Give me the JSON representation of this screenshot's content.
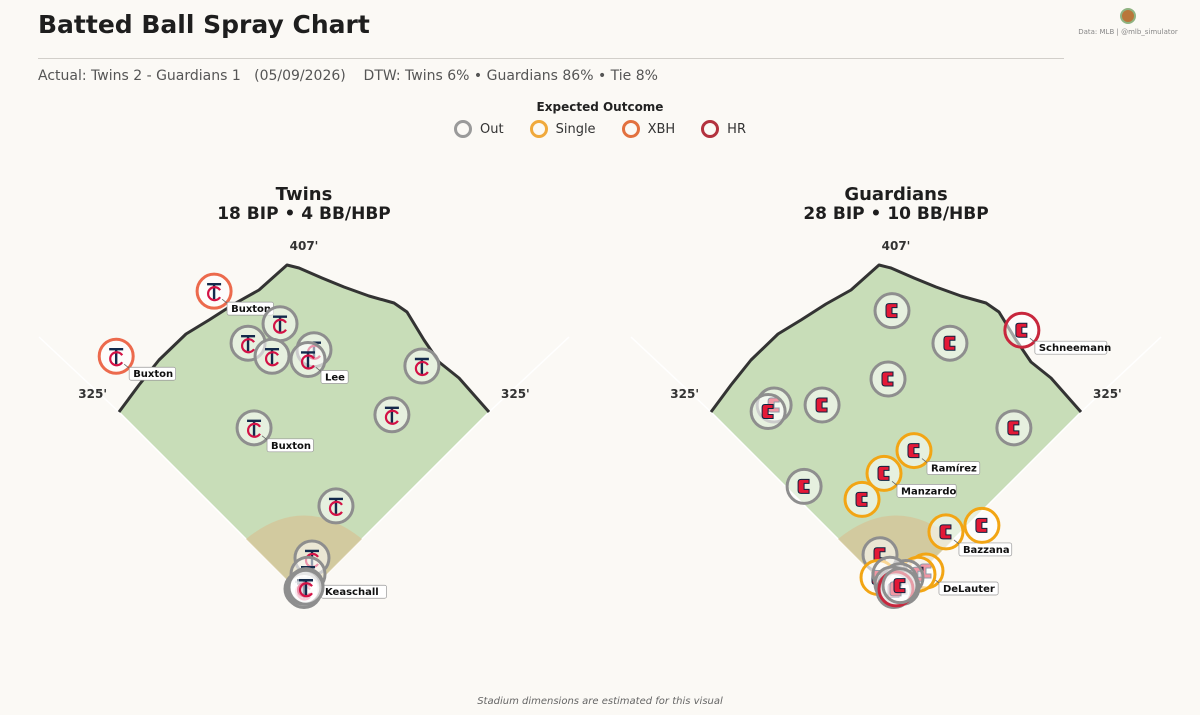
{
  "title": "Batted Ball Spray Chart",
  "subtitle": "Actual: Twins 2 - Guardians 1   (05/09/2026)    DTW: Twins 6% • Guardians 86% • Tie 8%",
  "credits": "Data: MLB  |  @mlb_simulator",
  "legend": {
    "title": "Expected Outcome",
    "items": [
      {
        "label": "Out",
        "color": "#9a9a9a"
      },
      {
        "label": "Single",
        "color": "#f0a93c"
      },
      {
        "label": "XBH",
        "color": "#e2713f"
      },
      {
        "label": "HR",
        "color": "#b3323e"
      }
    ]
  },
  "footnote": "Stadium dimensions are estimated for this visual",
  "colors": {
    "Out": "#8e8e8e",
    "Single": "#f2a514",
    "XBH": "#ec6a4d",
    "HR": "#c8273d",
    "grass": "#c8ddb8",
    "dirt": "#d4c699",
    "wall": "#333333"
  },
  "chart_data": [
    {
      "type": "scatter",
      "team": "Twins",
      "title": "Twins",
      "summary": "18 BIP  •  4 BB/HBP",
      "logo": "twins-tc-logo",
      "dims": {
        "center": "407'",
        "left": "325'",
        "right": "325'"
      },
      "points": [
        {
          "x": -0.94,
          "y": 0.74,
          "outcome": "XBH",
          "label": "Buxton"
        },
        {
          "x": -0.45,
          "y": 0.94,
          "outcome": "XBH",
          "label": "Buxton"
        },
        {
          "x": -0.12,
          "y": 0.84,
          "outcome": "Out"
        },
        {
          "x": -0.28,
          "y": 0.78,
          "outcome": "Out"
        },
        {
          "x": -0.16,
          "y": 0.74,
          "outcome": "Out"
        },
        {
          "x": 0.05,
          "y": 0.76,
          "outcome": "Out"
        },
        {
          "x": 0.02,
          "y": 0.73,
          "outcome": "Out",
          "label": "Lee"
        },
        {
          "x": 0.59,
          "y": 0.71,
          "outcome": "Out"
        },
        {
          "x": -0.25,
          "y": 0.52,
          "outcome": "Out",
          "label": "Buxton"
        },
        {
          "x": 0.44,
          "y": 0.56,
          "outcome": "Out"
        },
        {
          "x": 0.16,
          "y": 0.28,
          "outcome": "Out"
        },
        {
          "x": 0.04,
          "y": 0.12,
          "outcome": "Out"
        },
        {
          "x": 0.02,
          "y": 0.07,
          "outcome": "Out",
          "label": "Keaschall"
        },
        {
          "x": 0.01,
          "y": 0.035,
          "outcome": "Out"
        },
        {
          "x": -0.01,
          "y": 0.025,
          "outcome": "Out"
        },
        {
          "x": 0.0,
          "y": 0.02,
          "outcome": "Out"
        },
        {
          "x": 0.0,
          "y": 0.03,
          "outcome": "Out"
        },
        {
          "x": 0.01,
          "y": 0.03,
          "outcome": "Out"
        }
      ]
    },
    {
      "type": "scatter",
      "team": "Guardians",
      "title": "Guardians",
      "summary": "28 BIP  •  10 BB/HBP",
      "logo": "guardians-c-logo",
      "dims": {
        "center": "407'",
        "left": "325'",
        "right": "325'"
      },
      "points": [
        {
          "x": -0.02,
          "y": 0.88,
          "outcome": "Out"
        },
        {
          "x": 0.27,
          "y": 0.78,
          "outcome": "Out"
        },
        {
          "x": 0.63,
          "y": 0.82,
          "outcome": "HR",
          "label": "Schneemann"
        },
        {
          "x": -0.61,
          "y": 0.59,
          "outcome": "Out"
        },
        {
          "x": -0.64,
          "y": 0.57,
          "outcome": "Out"
        },
        {
          "x": -0.37,
          "y": 0.59,
          "outcome": "Out"
        },
        {
          "x": -0.04,
          "y": 0.67,
          "outcome": "Out"
        },
        {
          "x": 0.59,
          "y": 0.52,
          "outcome": "Out"
        },
        {
          "x": 0.09,
          "y": 0.45,
          "outcome": "Single",
          "label": "Ramírez"
        },
        {
          "x": -0.06,
          "y": 0.38,
          "outcome": "Single",
          "label": "Manzardo"
        },
        {
          "x": -0.46,
          "y": 0.34,
          "outcome": "Out"
        },
        {
          "x": -0.17,
          "y": 0.3,
          "outcome": "Single"
        },
        {
          "x": 0.25,
          "y": 0.2,
          "outcome": "Single",
          "label": "Bazzana"
        },
        {
          "x": 0.43,
          "y": 0.22,
          "outcome": "Single"
        },
        {
          "x": -0.08,
          "y": 0.13,
          "outcome": "Out"
        },
        {
          "x": -0.09,
          "y": 0.06,
          "outcome": "Single"
        },
        {
          "x": 0.15,
          "y": 0.08,
          "outcome": "Single",
          "label": "DeLauter"
        },
        {
          "x": 0.11,
          "y": 0.07,
          "outcome": "Single"
        },
        {
          "x": 0.05,
          "y": 0.06,
          "outcome": "Out"
        },
        {
          "x": -0.03,
          "y": 0.07,
          "outcome": "Out"
        },
        {
          "x": 0.0,
          "y": 0.04,
          "outcome": "Out"
        },
        {
          "x": 0.02,
          "y": 0.05,
          "outcome": "Out"
        },
        {
          "x": -0.02,
          "y": 0.04,
          "outcome": "Out"
        },
        {
          "x": 0.01,
          "y": 0.03,
          "outcome": "Out"
        },
        {
          "x": 0.03,
          "y": 0.03,
          "outcome": "Out"
        },
        {
          "x": -0.01,
          "y": 0.02,
          "outcome": "Out"
        },
        {
          "x": 0.0,
          "y": 0.025,
          "outcome": "HR"
        },
        {
          "x": 0.02,
          "y": 0.035,
          "outcome": "Out"
        }
      ]
    }
  ]
}
